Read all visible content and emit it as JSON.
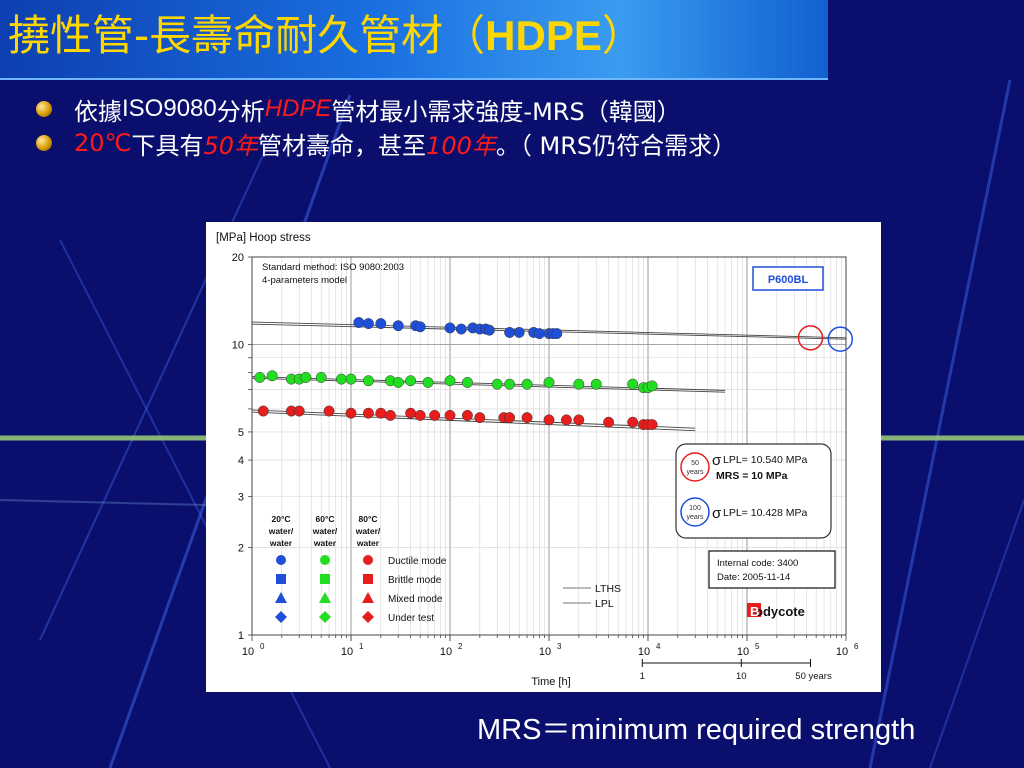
{
  "slide": {
    "title_cjk": "撓性管-長壽命耐久管材（",
    "title_bold": "HDPE",
    "title_close": "）",
    "bullets": [
      {
        "parts": [
          "依據",
          "ISO9080",
          "分析",
          "HDPE",
          "管材最小需求強度-MRS（韓國）"
        ]
      },
      {
        "parts": [
          "20℃",
          "下具有",
          "50年",
          "管材壽命，甚至",
          "100年",
          "。（ MRS仍符合需求）"
        ]
      }
    ],
    "footnote": "MRS＝minimum required strength",
    "colors": {
      "background": "#0a0f6e",
      "title_text": "#ffd700",
      "highlight": "#ff1a1a"
    }
  },
  "chart_data": {
    "type": "scatter",
    "title": "[MPa] Hoop stress",
    "xlabel": "Time [h]",
    "x_scale": "log",
    "y_scale": "log",
    "xlim": [
      1,
      1000000
    ],
    "ylim": [
      1,
      20
    ],
    "x_ticks": [
      "10^0",
      "10^1",
      "10^2",
      "10^3",
      "10^4",
      "10^5",
      "10^6"
    ],
    "y_ticks": [
      "1",
      "2",
      "3",
      "4",
      "5",
      "10",
      "20"
    ],
    "years_axis": {
      "ticks": [
        "1",
        "10",
        "50 years"
      ],
      "hours": [
        8760,
        87600,
        438000
      ]
    },
    "method_note": [
      "Standard method: ISO 9080:2003",
      "4-parameters model"
    ],
    "product_label": "P600BL",
    "series": [
      {
        "name": "20°C water/ water",
        "color": "#1f4fd8",
        "x": [
          12,
          15,
          20,
          30,
          45,
          50,
          100,
          130,
          170,
          200,
          230,
          250,
          400,
          500,
          700,
          800,
          1000,
          1100,
          1200
        ],
        "y": [
          11.9,
          11.8,
          11.8,
          11.6,
          11.6,
          11.5,
          11.4,
          11.3,
          11.4,
          11.3,
          11.3,
          11.2,
          11.0,
          11.0,
          11.0,
          10.9,
          10.9,
          10.9,
          10.9
        ]
      },
      {
        "name": "60°C water/ water",
        "color": "#22dd22",
        "x": [
          1.2,
          1.6,
          2.5,
          3,
          3.5,
          5,
          8,
          10,
          15,
          25,
          30,
          40,
          60,
          100,
          150,
          300,
          400,
          600,
          1000,
          2000,
          3000,
          7000,
          9000,
          10000,
          11000
        ],
        "y": [
          7.7,
          7.8,
          7.6,
          7.6,
          7.7,
          7.7,
          7.6,
          7.6,
          7.5,
          7.5,
          7.4,
          7.5,
          7.4,
          7.5,
          7.4,
          7.3,
          7.3,
          7.3,
          7.4,
          7.3,
          7.3,
          7.3,
          7.1,
          7.1,
          7.2
        ]
      },
      {
        "name": "80°C water/ water",
        "color": "#e61e1e",
        "x": [
          1.3,
          2.5,
          3,
          6,
          10,
          15,
          20,
          25,
          40,
          50,
          70,
          100,
          150,
          200,
          350,
          400,
          600,
          1000,
          1500,
          2000,
          4000,
          7000,
          9000,
          10000,
          11000
        ],
        "y": [
          5.9,
          5.9,
          5.9,
          5.9,
          5.8,
          5.8,
          5.8,
          5.7,
          5.8,
          5.7,
          5.7,
          5.7,
          5.7,
          5.6,
          5.6,
          5.6,
          5.6,
          5.5,
          5.5,
          5.5,
          5.4,
          5.4,
          5.3,
          5.3,
          5.3
        ]
      }
    ],
    "lines": [
      {
        "name": "LTHS",
        "from": [
          1,
          11.95
        ],
        "to": [
          1000000,
          10.54
        ]
      },
      {
        "name": "LPL",
        "from": [
          1,
          11.75
        ],
        "to": [
          1000000,
          10.43
        ]
      },
      {
        "name": "60-LTHS",
        "from": [
          1,
          7.75
        ],
        "to": [
          60000,
          6.95
        ]
      },
      {
        "name": "60-LPL",
        "from": [
          1,
          7.65
        ],
        "to": [
          60000,
          6.85
        ]
      },
      {
        "name": "80-LTHS",
        "from": [
          1,
          5.95
        ],
        "to": [
          30000,
          5.15
        ]
      },
      {
        "name": "80-LPL",
        "from": [
          1,
          5.85
        ],
        "to": [
          30000,
          5.05
        ]
      }
    ],
    "legend": {
      "headers": [
        "20°C water/ water",
        "60°C water/ water",
        "80°C water/ water"
      ],
      "modes": [
        "Ductile mode",
        "Brittle mode",
        "Mixed mode",
        "Under test"
      ],
      "line_labels": [
        "LTHS",
        "LPL"
      ]
    },
    "annotations": {
      "box50": {
        "badge": [
          "50",
          "years"
        ],
        "sigma": "σ",
        "lpl": "LPL= 10.540 MPa",
        "mrs": "MRS = 10 MPa"
      },
      "box100": {
        "badge": [
          "100",
          "years"
        ],
        "sigma": "σ",
        "lpl": "LPL= 10.428 MPa"
      },
      "internal": [
        "Internal code: 3400",
        "Date: 2005-11-14"
      ],
      "brand": "Bodycote"
    },
    "marked_points": [
      {
        "x": 438000,
        "y": 10.54,
        "color": "#e61e1e"
      },
      {
        "x": 876000,
        "y": 10.43,
        "color": "#1f4fd8"
      }
    ]
  }
}
